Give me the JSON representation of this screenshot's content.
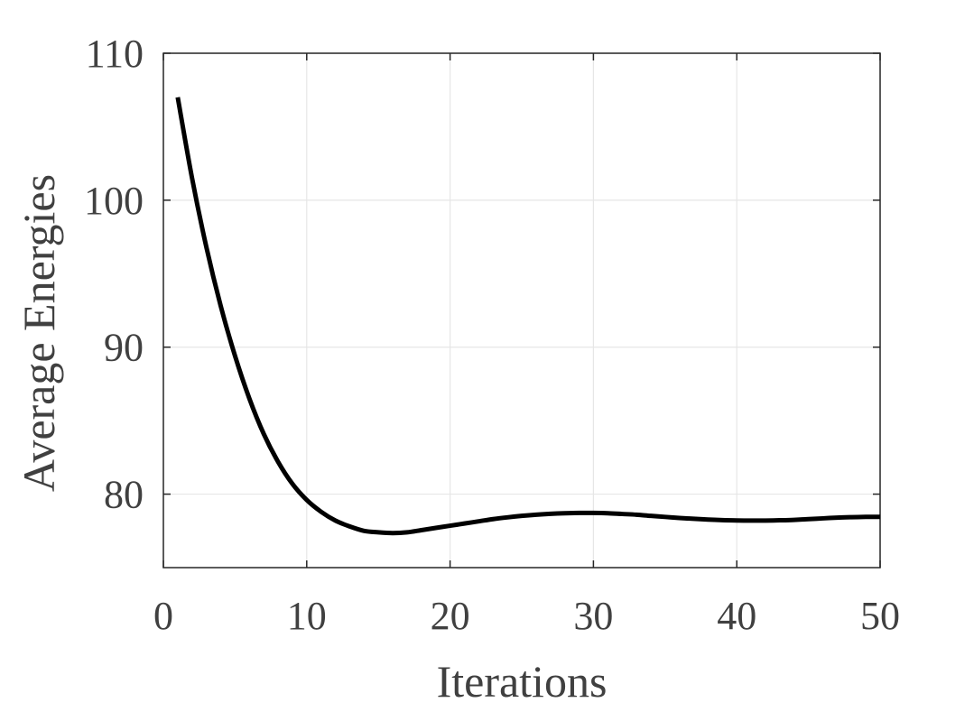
{
  "chart_data": {
    "type": "line",
    "xlabel": "Iterations",
    "ylabel": "Average Energies",
    "xlim": [
      0,
      50
    ],
    "ylim": [
      75,
      110
    ],
    "x_ticks": [
      0,
      10,
      20,
      30,
      40,
      50
    ],
    "y_ticks": [
      80,
      90,
      100,
      110
    ],
    "x_tick_labels": [
      "0",
      "10",
      "20",
      "30",
      "40",
      "50"
    ],
    "y_tick_labels": [
      "80",
      "90",
      "100",
      "110"
    ],
    "grid": true,
    "line_color": "#000000",
    "series": [
      {
        "x": [
          1,
          2,
          3,
          4,
          5,
          6,
          7,
          8,
          9,
          10,
          11,
          12,
          13,
          14,
          15,
          16,
          17,
          18,
          19,
          20,
          21,
          22,
          23,
          24,
          25,
          26,
          27,
          28,
          29,
          30,
          31,
          32,
          33,
          34,
          35,
          36,
          37,
          38,
          39,
          40,
          41,
          42,
          43,
          44,
          45,
          46,
          47,
          48,
          49,
          50
        ],
        "y": [
          107,
          101.5,
          96.8,
          92.8,
          89.4,
          86.5,
          84.1,
          82.2,
          80.7,
          79.6,
          78.8,
          78.2,
          77.8,
          77.5,
          77.4,
          77.35,
          77.4,
          77.55,
          77.7,
          77.85,
          78.0,
          78.15,
          78.3,
          78.42,
          78.52,
          78.6,
          78.66,
          78.7,
          78.72,
          78.72,
          78.7,
          78.65,
          78.6,
          78.52,
          78.45,
          78.38,
          78.32,
          78.27,
          78.23,
          78.21,
          78.2,
          78.2,
          78.22,
          78.25,
          78.3,
          78.35,
          78.4,
          78.43,
          78.45,
          78.45
        ]
      }
    ]
  }
}
